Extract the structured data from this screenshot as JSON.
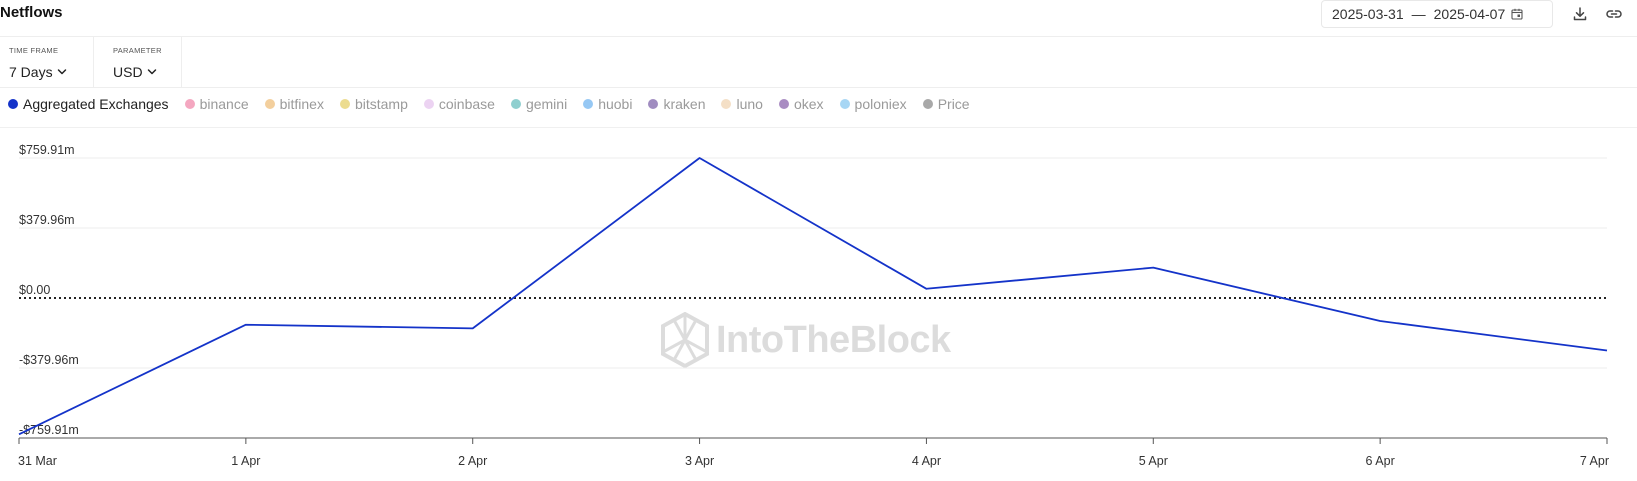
{
  "header": {
    "title": "Netflows",
    "date_start": "2025-03-31",
    "date_separator": "—",
    "date_end": "2025-04-07"
  },
  "controls": {
    "timeframe": {
      "label": "TIME FRAME",
      "value": "7 Days"
    },
    "parameter": {
      "label": "PARAMETER",
      "value": "USD"
    }
  },
  "legend": [
    {
      "label": "Aggregated Exchanges",
      "color": "#1433c9",
      "active": true
    },
    {
      "label": "binance",
      "color": "#f4a7c0",
      "active": false
    },
    {
      "label": "bitfinex",
      "color": "#f3cf9d",
      "active": false
    },
    {
      "label": "bitstamp",
      "color": "#ecdc8f",
      "active": false
    },
    {
      "label": "coinbase",
      "color": "#ecd3f2",
      "active": false
    },
    {
      "label": "gemini",
      "color": "#8fcfcf",
      "active": false
    },
    {
      "label": "huobi",
      "color": "#96c8f4",
      "active": false
    },
    {
      "label": "kraken",
      "color": "#a08cc0",
      "active": false
    },
    {
      "label": "luno",
      "color": "#f4dfc6",
      "active": false
    },
    {
      "label": "okex",
      "color": "#a98cc2",
      "active": false
    },
    {
      "label": "poloniex",
      "color": "#a7d6f4",
      "active": false
    },
    {
      "label": "Price",
      "color": "#a8a8a8",
      "active": false
    }
  ],
  "watermark": "IntoTheBlock",
  "chart_data": {
    "type": "line",
    "title": "Netflows",
    "xlabel": "",
    "ylabel": "",
    "unit": "USD",
    "categories": [
      "31 Mar",
      "1 Apr",
      "2 Apr",
      "3 Apr",
      "4 Apr",
      "5 Apr",
      "6 Apr",
      "7 Apr"
    ],
    "series": [
      {
        "name": "Aggregated Exchanges",
        "color": "#1433c9",
        "values": [
          -740,
          -145,
          -165,
          760,
          50,
          165,
          -125,
          -285
        ]
      }
    ],
    "y_ticks": [
      759.91,
      379.96,
      0,
      -379.96,
      -759.91
    ],
    "y_tick_labels": [
      "$759.91m",
      "$379.96m",
      "$0.00",
      "-$379.96m",
      "-$759.91m"
    ],
    "ylim": [
      -759.91,
      759.91
    ],
    "zero_line": "dotted",
    "grid": "horizontal"
  }
}
